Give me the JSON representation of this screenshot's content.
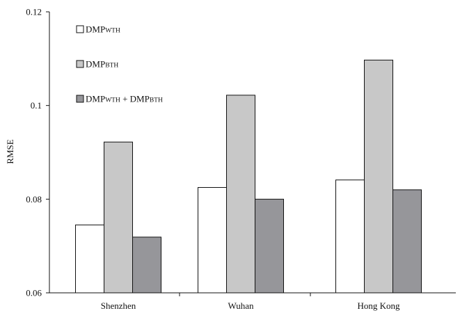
{
  "colors": {
    "axis": "#111111",
    "series": [
      "#ffffff",
      "#c8c8c8",
      "#96969a"
    ],
    "stroke": "#111111"
  },
  "chart_data": {
    "type": "bar",
    "title": "",
    "xlabel": "",
    "ylabel": "RMSE",
    "ylim": [
      0.06,
      0.12
    ],
    "yticks": [
      0.06,
      0.08,
      0.1,
      0.12
    ],
    "ytick_labels": [
      "0.06",
      "0.08",
      "0.1",
      "0.12"
    ],
    "grid": false,
    "legend_position": "top-left",
    "categories": [
      "Shenzhen",
      "Wuhan",
      "Hong Kong"
    ],
    "series": [
      {
        "name": "DMP WTH",
        "legend_parts": [
          {
            "text": "DMP",
            "sc": false
          },
          {
            "text": "WTH",
            "sc": true
          }
        ],
        "values": [
          0.0745,
          0.0825,
          0.0841
        ]
      },
      {
        "name": "DMP BTH",
        "legend_parts": [
          {
            "text": "DMP",
            "sc": false
          },
          {
            "text": "BTH",
            "sc": true
          }
        ],
        "values": [
          0.0922,
          0.1022,
          0.1097
        ]
      },
      {
        "name": "DMP WTH + DMP BTH",
        "legend_parts": [
          {
            "text": "DMP",
            "sc": false
          },
          {
            "text": "WTH",
            "sc": true
          },
          {
            "text": " + DMP",
            "sc": false
          },
          {
            "text": "BTH",
            "sc": true
          }
        ],
        "values": [
          0.0719,
          0.08,
          0.082
        ]
      }
    ]
  }
}
